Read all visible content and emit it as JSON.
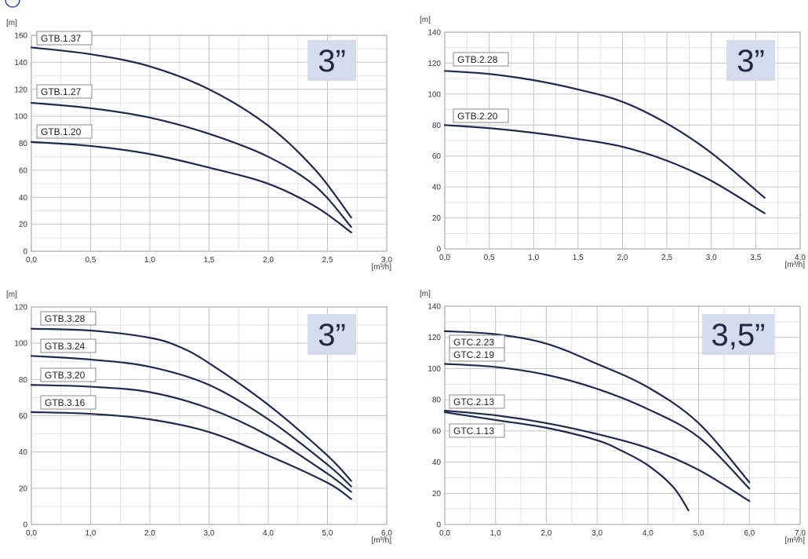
{
  "brand": {
    "text": ""
  },
  "chart_data": [
    {
      "type": "line",
      "title": "",
      "badge": "3”",
      "yunit": "[m]",
      "xunit": "[m³/h]",
      "xlim": [
        0,
        3
      ],
      "ylim": [
        0,
        160
      ],
      "xticks": [
        "0,0",
        "0,5",
        "1,0",
        "1,5",
        "2,0",
        "2,5",
        "3,0"
      ],
      "xtick_values": [
        0,
        0.5,
        1,
        1.5,
        2,
        2.5,
        3
      ],
      "yticks": [
        "0",
        "20",
        "40",
        "60",
        "80",
        "100",
        "120",
        "140",
        "160"
      ],
      "ytick_values": [
        0,
        20,
        40,
        60,
        80,
        100,
        120,
        140,
        160
      ],
      "series": [
        {
          "name": "GTB.1.37",
          "points": [
            [
              0,
              151
            ],
            [
              0.5,
              146
            ],
            [
              1.0,
              137
            ],
            [
              1.5,
              120
            ],
            [
              2.0,
              93
            ],
            [
              2.4,
              60
            ],
            [
              2.7,
              25
            ]
          ]
        },
        {
          "name": "GTB.1.27",
          "points": [
            [
              0,
              110
            ],
            [
              0.5,
              106
            ],
            [
              1.0,
              99
            ],
            [
              1.5,
              87
            ],
            [
              2.0,
              70
            ],
            [
              2.4,
              48
            ],
            [
              2.7,
              18
            ]
          ]
        },
        {
          "name": "GTB.1.20",
          "points": [
            [
              0,
              81
            ],
            [
              0.5,
              78
            ],
            [
              1.0,
              72
            ],
            [
              1.5,
              62
            ],
            [
              2.0,
              50
            ],
            [
              2.4,
              33
            ],
            [
              2.7,
              14
            ]
          ]
        }
      ]
    },
    {
      "type": "line",
      "title": "",
      "badge": "3”",
      "yunit": "[m]",
      "xunit": "[m³/h]",
      "xlim": [
        0,
        4
      ],
      "ylim": [
        0,
        140
      ],
      "xticks": [
        "0,0",
        "0,5",
        "1,0",
        "1,5",
        "2,0",
        "2,5",
        "3,0",
        "3,5",
        "4,0"
      ],
      "xtick_values": [
        0,
        0.5,
        1,
        1.5,
        2,
        2.5,
        3,
        3.5,
        4
      ],
      "yticks": [
        "0",
        "20",
        "40",
        "60",
        "80",
        "100",
        "120",
        "140"
      ],
      "ytick_values": [
        0,
        20,
        40,
        60,
        80,
        100,
        120,
        140
      ],
      "series": [
        {
          "name": "GTB.2.28",
          "points": [
            [
              0,
              115
            ],
            [
              0.5,
              113
            ],
            [
              1.0,
              109
            ],
            [
              1.5,
              103
            ],
            [
              2.0,
              95
            ],
            [
              2.5,
              81
            ],
            [
              3.0,
              62
            ],
            [
              3.6,
              33
            ]
          ]
        },
        {
          "name": "GTB.2.20",
          "points": [
            [
              0,
              80
            ],
            [
              0.5,
              78
            ],
            [
              1.0,
              75
            ],
            [
              1.5,
              71
            ],
            [
              2.0,
              66
            ],
            [
              2.5,
              57
            ],
            [
              3.0,
              44
            ],
            [
              3.6,
              23
            ]
          ]
        }
      ]
    },
    {
      "type": "line",
      "title": "",
      "badge": "3”",
      "yunit": "[m]",
      "xunit": "[m³/h]",
      "xlim": [
        0,
        6
      ],
      "ylim": [
        0,
        120
      ],
      "xticks": [
        "0,0",
        "1,0",
        "2,0",
        "3,0",
        "4,0",
        "5,0",
        "6,0"
      ],
      "xtick_values": [
        0,
        1,
        2,
        3,
        4,
        5,
        6
      ],
      "yticks": [
        "0",
        "20",
        "40",
        "60",
        "80",
        "100",
        "120"
      ],
      "ytick_values": [
        0,
        20,
        40,
        60,
        80,
        100,
        120
      ],
      "series": [
        {
          "name": "GTB.3.28",
          "points": [
            [
              0,
              108
            ],
            [
              1.0,
              107
            ],
            [
              2.0,
              103
            ],
            [
              2.5,
              98
            ],
            [
              3.0,
              89
            ],
            [
              4.0,
              66
            ],
            [
              5.0,
              38
            ],
            [
              5.4,
              24
            ]
          ]
        },
        {
          "name": "GTB.3.24",
          "points": [
            [
              0,
              93
            ],
            [
              1.0,
              91
            ],
            [
              2.0,
              87
            ],
            [
              3.0,
              77
            ],
            [
              4.0,
              58
            ],
            [
              5.0,
              33
            ],
            [
              5.4,
              21
            ]
          ]
        },
        {
          "name": "GTB.3.20",
          "points": [
            [
              0,
              77
            ],
            [
              1.0,
              76
            ],
            [
              2.0,
              73
            ],
            [
              3.0,
              64
            ],
            [
              4.0,
              49
            ],
            [
              5.0,
              28
            ],
            [
              5.4,
              18
            ]
          ]
        },
        {
          "name": "GTB.3.16",
          "points": [
            [
              0,
              62
            ],
            [
              1.0,
              61
            ],
            [
              2.0,
              58
            ],
            [
              3.0,
              51
            ],
            [
              4.0,
              38
            ],
            [
              5.0,
              23
            ],
            [
              5.4,
              14
            ]
          ]
        }
      ]
    },
    {
      "type": "line",
      "title": "",
      "badge": "3,5”",
      "yunit": "[m]",
      "xunit": "[m³/h]",
      "xlim": [
        0,
        7
      ],
      "ylim": [
        0,
        140
      ],
      "xticks": [
        "0,0",
        "1,0",
        "2,0",
        "3,0",
        "4,0",
        "5,0",
        "6,0",
        "7,0"
      ],
      "xtick_values": [
        0,
        1,
        2,
        3,
        4,
        5,
        6,
        7
      ],
      "yticks": [
        "0",
        "20",
        "40",
        "60",
        "80",
        "100",
        "120",
        "140"
      ],
      "ytick_values": [
        0,
        20,
        40,
        60,
        80,
        100,
        120,
        140
      ],
      "series": [
        {
          "name": "GTC.2.23",
          "points": [
            [
              0,
              124
            ],
            [
              1.0,
              122
            ],
            [
              2.0,
              116
            ],
            [
              3.0,
              103
            ],
            [
              4.0,
              88
            ],
            [
              5.0,
              65
            ],
            [
              6.0,
              27
            ]
          ]
        },
        {
          "name": "GTC.2.19",
          "points": [
            [
              0,
              103
            ],
            [
              1.0,
              101
            ],
            [
              2.0,
              96
            ],
            [
              3.0,
              87
            ],
            [
              4.0,
              74
            ],
            [
              5.0,
              56
            ],
            [
              6.0,
              23
            ]
          ]
        },
        {
          "name": "GTC.2.13",
          "points": [
            [
              0,
              73
            ],
            [
              1.0,
              70
            ],
            [
              2.0,
              65
            ],
            [
              3.0,
              58
            ],
            [
              4.0,
              49
            ],
            [
              5.0,
              35
            ],
            [
              6.0,
              15
            ]
          ]
        },
        {
          "name": "GTC.1.13",
          "points": [
            [
              0,
              72
            ],
            [
              1.0,
              67
            ],
            [
              2.0,
              62
            ],
            [
              3.0,
              54
            ],
            [
              3.5,
              47
            ],
            [
              4.0,
              38
            ],
            [
              4.5,
              24
            ],
            [
              4.8,
              9
            ]
          ]
        }
      ]
    }
  ]
}
